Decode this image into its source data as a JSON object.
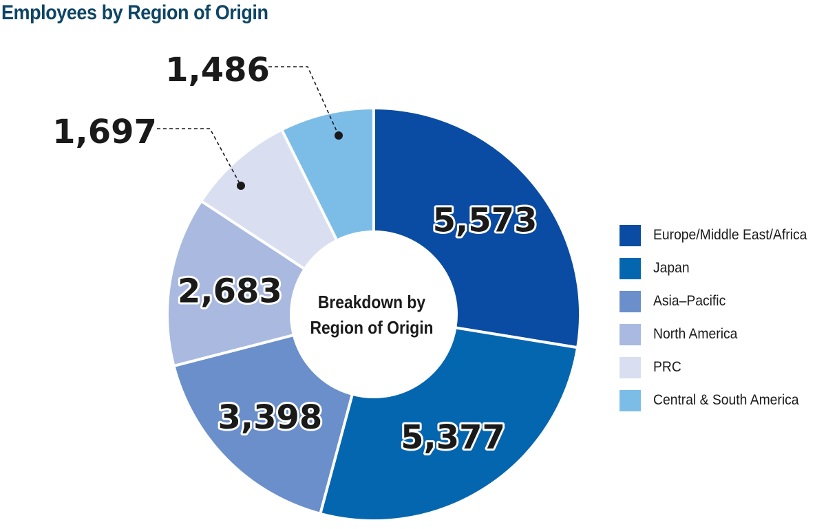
{
  "title": "Employees by Region of Origin",
  "chart_data": {
    "type": "pie",
    "variant": "donut",
    "title": "Employees by Region of Origin",
    "center_label": [
      "Breakdown by",
      "Region of Origin"
    ],
    "start": "12 o'clock, clockwise",
    "legend_position": "right",
    "categories": [
      "Europe/Middle East/Africa",
      "Japan",
      "Asia–Pacific",
      "North America",
      "PRC",
      "Central & South America"
    ],
    "values": [
      5573,
      5377,
      3398,
      2683,
      1697,
      1486
    ],
    "data_labels": [
      "5,573",
      "5,377",
      "3,398",
      "2,683",
      "1,697",
      "1,486"
    ],
    "colors": [
      "#0a4ca3",
      "#0566b0",
      "#6a8fcb",
      "#a9b9e0",
      "#d9dff0",
      "#7cbde8"
    ]
  }
}
